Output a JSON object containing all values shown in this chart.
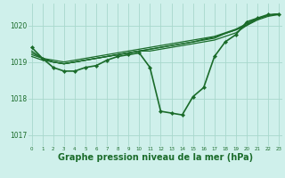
{
  "background_color": "#cff0eb",
  "grid_color": "#a8d8cc",
  "line_color": "#1a6b2a",
  "marker_color": "#1a6b2a",
  "xlabel": "Graphe pression niveau de la mer (hPa)",
  "xlabel_fontsize": 7,
  "ylim": [
    1016.7,
    1020.6
  ],
  "xlim": [
    -0.3,
    23.3
  ],
  "yticks": [
    1017,
    1018,
    1019,
    1020
  ],
  "xticks": [
    0,
    1,
    2,
    3,
    4,
    5,
    6,
    7,
    8,
    9,
    10,
    11,
    12,
    13,
    14,
    15,
    16,
    17,
    18,
    19,
    20,
    21,
    22,
    23
  ],
  "series": [
    [
      1019.4,
      1019.1,
      1018.85,
      1018.75,
      1018.75,
      1018.85,
      1018.9,
      1019.05,
      1019.15,
      1019.2,
      1019.25,
      1018.85,
      1017.65,
      1017.6,
      1017.55,
      1018.05,
      1018.3,
      1019.15,
      1019.55,
      1019.75,
      1020.1,
      1020.2,
      1020.3,
      1020.3
    ],
    [
      1019.15,
      1019.05,
      1019.0,
      1018.95,
      1019.0,
      1019.05,
      1019.1,
      1019.15,
      1019.2,
      1019.25,
      1019.3,
      1019.3,
      1019.35,
      1019.4,
      1019.45,
      1019.5,
      1019.55,
      1019.6,
      1019.7,
      1019.8,
      1020.0,
      1020.15,
      1020.25,
      1020.3
    ],
    [
      1019.2,
      1019.1,
      1019.05,
      1019.0,
      1019.05,
      1019.1,
      1019.15,
      1019.2,
      1019.25,
      1019.3,
      1019.35,
      1019.4,
      1019.45,
      1019.5,
      1019.55,
      1019.6,
      1019.65,
      1019.7,
      1019.8,
      1019.9,
      1020.05,
      1020.2,
      1020.28,
      1020.32
    ],
    [
      1019.25,
      1019.1,
      1019.0,
      1018.95,
      1019.0,
      1019.05,
      1019.1,
      1019.15,
      1019.2,
      1019.25,
      1019.3,
      1019.35,
      1019.4,
      1019.45,
      1019.5,
      1019.55,
      1019.6,
      1019.65,
      1019.78,
      1019.88,
      1020.0,
      1020.18,
      1020.28,
      1020.32
    ],
    [
      1019.3,
      1019.1,
      1019.0,
      1018.95,
      1019.0,
      1019.05,
      1019.1,
      1019.15,
      1019.2,
      1019.25,
      1019.3,
      1019.35,
      1019.4,
      1019.45,
      1019.5,
      1019.55,
      1019.62,
      1019.68,
      1019.78,
      1019.88,
      1020.02,
      1020.19,
      1020.28,
      1020.32
    ]
  ],
  "line_widths": [
    1.2,
    0.9,
    0.9,
    0.9,
    0.9
  ],
  "marker_series": [
    0
  ],
  "marker_size": 2.2
}
